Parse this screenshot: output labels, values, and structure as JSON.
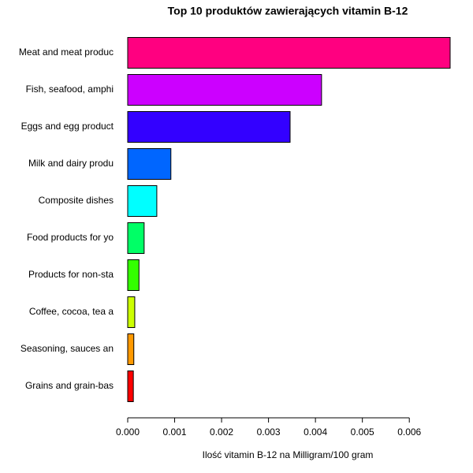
{
  "chart_data": {
    "type": "barh",
    "title": "Top 10 produktów zawierających vitamin B-12",
    "x_label": "Ilość vitamin B-12 na Milligram/100 gram",
    "categories": [
      "Meat and meat produc",
      "Fish, seafood, amphi",
      "Eggs and egg product",
      "Milk and dairy produ",
      "Composite dishes",
      "Food products for yo",
      "Products for non-sta",
      "Coffee, cocoa, tea a",
      "Seasoning, sauces an",
      "Grains and grain-bas"
    ],
    "values": [
      0.00687,
      0.00413,
      0.00346,
      0.00092,
      0.00062,
      0.00035,
      0.00024,
      0.00015,
      0.00013,
      0.00012
    ],
    "colors": [
      "#FF0080",
      "#CC00FF",
      "#3300FF",
      "#0066FF",
      "#00FFFF",
      "#00FF66",
      "#33FF00",
      "#CCFF00",
      "#FF9900",
      "#FF0000"
    ],
    "xlim": [
      0,
      0.00687
    ],
    "xticks": [
      {
        "value": 0,
        "label": "0.000"
      },
      {
        "value": 0.001,
        "label": "0.001"
      },
      {
        "value": 0.002,
        "label": "0.002"
      },
      {
        "value": 0.003,
        "label": "0.003"
      },
      {
        "value": 0.004,
        "label": "0.004"
      },
      {
        "value": 0.005,
        "label": "0.005"
      },
      {
        "value": 0.006,
        "label": "0.006"
      }
    ]
  }
}
